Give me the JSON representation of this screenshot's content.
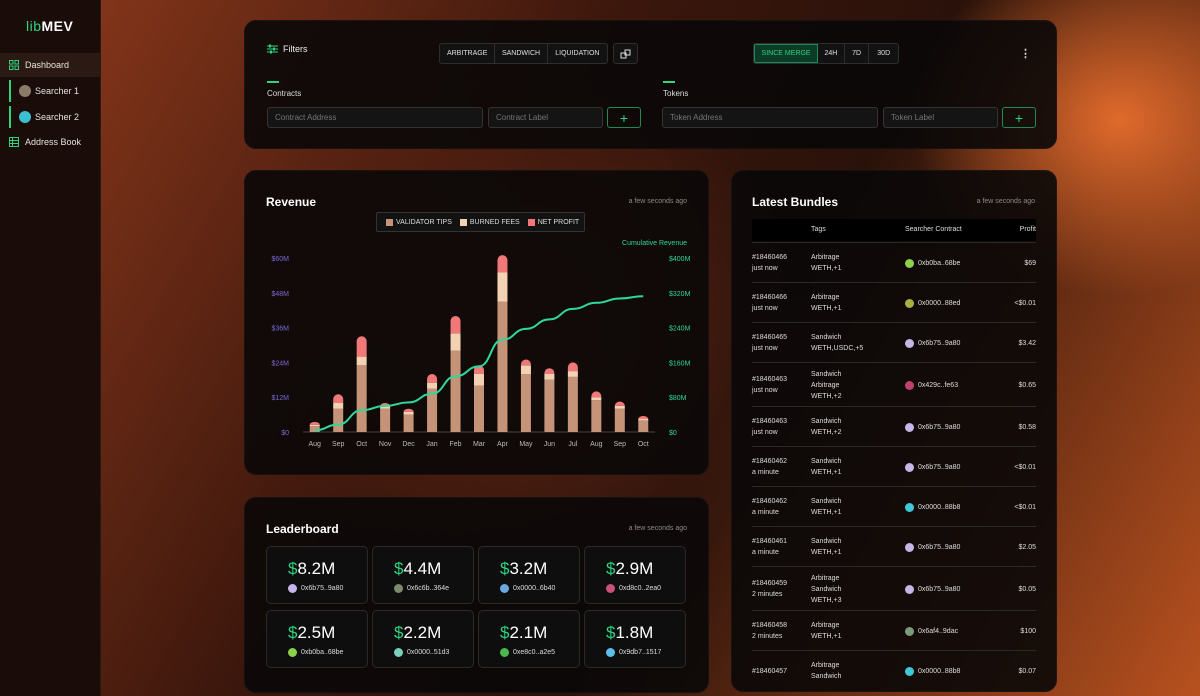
{
  "app": {
    "logo_prefix": "lib",
    "logo_name": "MEV"
  },
  "sidebar": {
    "items": [
      {
        "label": "Dashboard",
        "icon": "grid-icon"
      },
      {
        "label": "Searcher 1",
        "icon": "avatar-icon"
      },
      {
        "label": "Searcher 2",
        "icon": "avatar-icon"
      },
      {
        "label": "Address Book",
        "icon": "book-icon"
      }
    ]
  },
  "filters": {
    "title": "Filters",
    "types": [
      "ARBITRAGE",
      "SANDWICH",
      "LIQUIDATION"
    ],
    "ranges": [
      "SINCE MERGE",
      "24H",
      "7D",
      "30D"
    ],
    "selected_range": "SINCE MERGE",
    "contracts_label": "Contracts",
    "contract_address_placeholder": "Contract Address",
    "contract_label_placeholder": "Contract Label",
    "tokens_label": "Tokens",
    "token_address_placeholder": "Token Address",
    "token_label_placeholder": "Token Label",
    "add_label": "+",
    "more_label": "⋮"
  },
  "revenue": {
    "title": "Revenue",
    "timestamp": "a few seconds ago",
    "cumulative_label": "Cumulative Revenue"
  },
  "chart_data": {
    "type": "bar",
    "title": "Revenue",
    "categories": [
      "Aug",
      "Sep",
      "Oct",
      "Nov",
      "Dec",
      "Jan",
      "Feb",
      "Mar",
      "Apr",
      "May",
      "Jun",
      "Jul",
      "Aug",
      "Sep",
      "Oct"
    ],
    "series": [
      {
        "name": "VALIDATOR TIPS",
        "color": "#c59478",
        "values": [
          2,
          8,
          23,
          8,
          6,
          15,
          28,
          16,
          45,
          20,
          18,
          19,
          11,
          8,
          4
        ]
      },
      {
        "name": "BURNED FEES",
        "color": "#f3d2b4",
        "values": [
          0.5,
          2,
          3,
          1,
          1,
          2,
          6,
          4,
          10,
          3,
          2,
          2,
          1,
          1,
          0.5
        ]
      },
      {
        "name": "NET PROFIT",
        "color": "#f07878",
        "values": [
          1,
          3,
          7,
          1,
          1,
          3,
          6,
          3,
          6,
          2,
          2,
          3,
          2,
          1.5,
          1
        ]
      },
      {
        "name": "Cumulative Revenue",
        "color": "#2ed89a",
        "values": [
          4,
          17,
          50,
          60,
          68,
          88,
          128,
          151,
          212,
          237,
          259,
          283,
          297,
          307,
          312
        ]
      }
    ],
    "y_left": {
      "ticks": [
        "$0",
        "$12M",
        "$24M",
        "$36M",
        "$48M",
        "$60M"
      ],
      "range": [
        0,
        60
      ]
    },
    "y_right": {
      "ticks": [
        "$0",
        "$80M",
        "$160M",
        "$240M",
        "$320M",
        "$400M"
      ],
      "range": [
        0,
        400
      ]
    },
    "legend_position": "top-center"
  },
  "leaderboard": {
    "title": "Leaderboard",
    "timestamp": "a few seconds ago",
    "cards": [
      {
        "amount": "8.2M",
        "address": "0x6b75..9a80",
        "color": "#c6b6e8"
      },
      {
        "amount": "4.4M",
        "address": "0x6c6b..364e",
        "color": "#7a8a6a"
      },
      {
        "amount": "3.2M",
        "address": "0x0000..6b40",
        "color": "#6aa8e0"
      },
      {
        "amount": "2.9M",
        "address": "0xd8c0..2ea0",
        "color": "#c8507a"
      },
      {
        "amount": "2.5M",
        "address": "0xb0ba..68be",
        "color": "#8fd04a"
      },
      {
        "amount": "2.2M",
        "address": "0x0000..51d3",
        "color": "#7ad0b8"
      },
      {
        "amount": "2.1M",
        "address": "0xe8c0..a2e5",
        "color": "#4ab84a"
      },
      {
        "amount": "1.8M",
        "address": "0x9db7..1517",
        "color": "#5ac0e8"
      }
    ],
    "currency": "$"
  },
  "bundles": {
    "title": "Latest Bundles",
    "timestamp": "a few seconds ago",
    "headers": {
      "tags": "Tags",
      "searcher": "Searcher Contract",
      "profit": "Profit"
    },
    "rows": [
      {
        "block": "#18460466",
        "time": "just now",
        "tags": [
          "Arbitrage",
          "WETH,+1"
        ],
        "contract": "0xb0ba..68be",
        "color": "#8fd04a",
        "profit": "$69"
      },
      {
        "block": "#18460466",
        "time": "just now",
        "tags": [
          "Arbitrage",
          "WETH,+1"
        ],
        "contract": "0x0000..88ed",
        "color": "#a8b040",
        "profit": "<$0.01"
      },
      {
        "block": "#18460465",
        "time": "just now",
        "tags": [
          "Sandwich",
          "WETH,USDC,+5"
        ],
        "contract": "0x6b75..9a80",
        "color": "#c6b6e8",
        "profit": "$3.42"
      },
      {
        "block": "#18460463",
        "time": "just now",
        "tags": [
          "Sandwich",
          "Arbitrage",
          "WETH,+2"
        ],
        "contract": "0x429c..fe63",
        "color": "#c04070",
        "profit": "$0.65"
      },
      {
        "block": "#18460463",
        "time": "just now",
        "tags": [
          "Sandwich",
          "WETH,+2"
        ],
        "contract": "0x6b75..9a80",
        "color": "#c6b6e8",
        "profit": "$0.58"
      },
      {
        "block": "#18460462",
        "time": "a minute",
        "tags": [
          "Sandwich",
          "WETH,+1"
        ],
        "contract": "0x6b75..9a80",
        "color": "#c6b6e8",
        "profit": "<$0.01"
      },
      {
        "block": "#18460462",
        "time": "a minute",
        "tags": [
          "Sandwich",
          "WETH,+1"
        ],
        "contract": "0x0000..88b8",
        "color": "#40c8d8",
        "profit": "<$0.01"
      },
      {
        "block": "#18460461",
        "time": "a minute",
        "tags": [
          "Sandwich",
          "WETH,+1"
        ],
        "contract": "0x6b75..9a80",
        "color": "#c6b6e8",
        "profit": "$2.05"
      },
      {
        "block": "#18460459",
        "time": "2 minutes",
        "tags": [
          "Arbitrage",
          "Sandwich",
          "WETH,+3"
        ],
        "contract": "0x6b75..9a80",
        "color": "#c6b6e8",
        "profit": "$0.05"
      },
      {
        "block": "#18460458",
        "time": "2 minutes",
        "tags": [
          "Arbitrage",
          "WETH,+1"
        ],
        "contract": "0x6af4..9dac",
        "color": "#7a9a7a",
        "profit": "$100"
      },
      {
        "block": "#18460457",
        "time": "",
        "tags": [
          "Arbitrage",
          "Sandwich"
        ],
        "contract": "0x0000..88b8",
        "color": "#40c8d8",
        "profit": "$0.07"
      }
    ]
  }
}
